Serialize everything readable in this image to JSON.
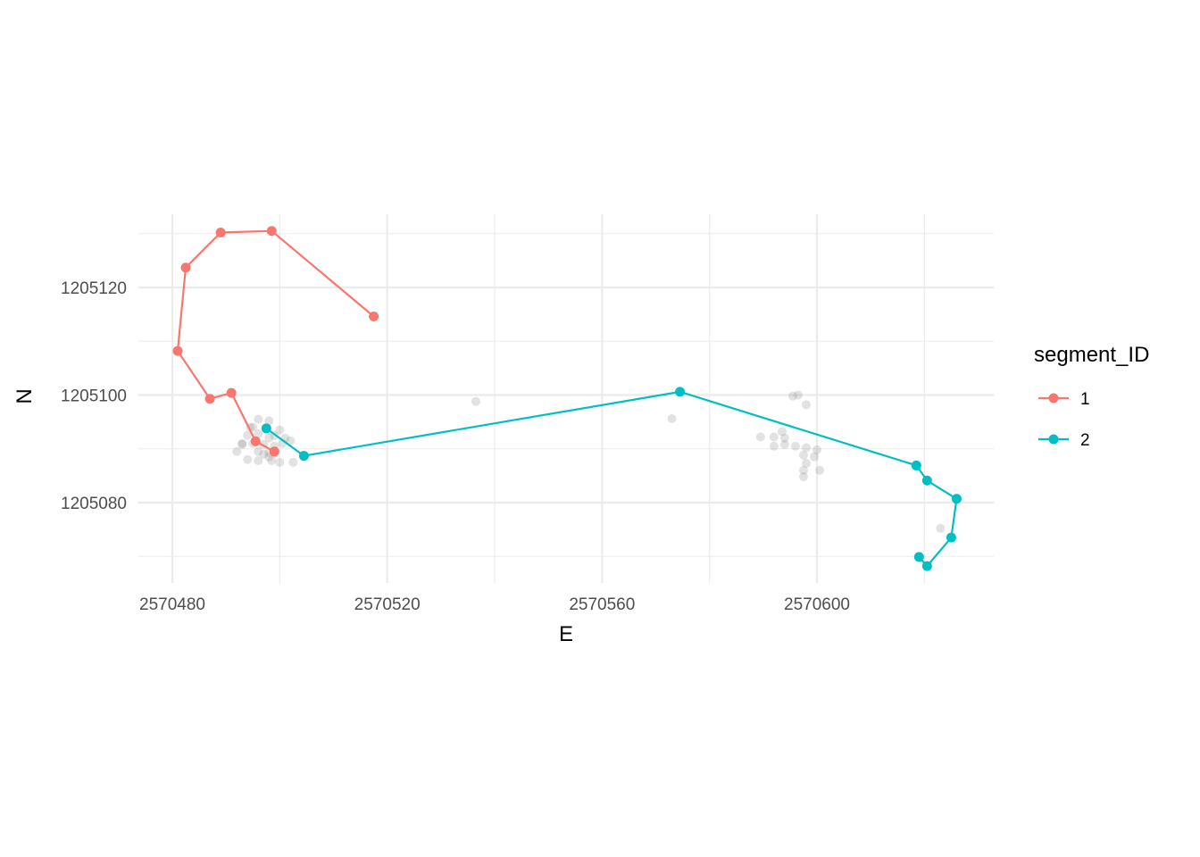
{
  "chart_data": {
    "type": "scatter",
    "title": "",
    "xlabel": "E",
    "ylabel": "N",
    "xlim": [
      2570474,
      2570633
    ],
    "ylim": [
      1205066,
      1205131
    ],
    "x_major_ticks": [
      2570480,
      2570520,
      2570560,
      2570600
    ],
    "x_minor_ticks": [
      2570500,
      2570540,
      2570580,
      2570620
    ],
    "y_major_ticks": [
      1205080,
      1205100,
      1205120
    ],
    "y_minor_ticks": [
      1205070,
      1205090,
      1205110,
      1205130
    ],
    "grid": true,
    "legend": {
      "title": "segment_ID",
      "position": "right"
    },
    "background_points": {
      "color": "#8c8c8c",
      "opacity": 0.25,
      "points": [
        [
          2570494.5,
          1205094
        ],
        [
          2570496,
          1205095.5
        ],
        [
          2570498,
          1205095.2
        ],
        [
          2570495,
          1205094
        ],
        [
          2570494,
          1205092.5
        ],
        [
          2570496,
          1205092.8
        ],
        [
          2570498,
          1205092
        ],
        [
          2570500,
          1205093.5
        ],
        [
          2570499,
          1205092.5
        ],
        [
          2570501,
          1205092
        ],
        [
          2570502,
          1205091.5
        ],
        [
          2570493,
          1205091
        ],
        [
          2570495,
          1205091
        ],
        [
          2570497,
          1205090.8
        ],
        [
          2570499,
          1205090.5
        ],
        [
          2570500.5,
          1205091
        ],
        [
          2570496,
          1205089.5
        ],
        [
          2570498,
          1205089.3
        ],
        [
          2570499,
          1205089.2
        ],
        [
          2570492,
          1205089.5
        ],
        [
          2570494,
          1205088
        ],
        [
          2570496,
          1205087.8
        ],
        [
          2570498.5,
          1205087.8
        ],
        [
          2570500,
          1205087.5
        ],
        [
          2570502.5,
          1205087.5
        ],
        [
          2570497,
          1205089
        ],
        [
          2570498,
          1205088.5
        ],
        [
          2570493,
          1205090.8
        ],
        [
          2570536.5,
          1205098.8
        ],
        [
          2570573,
          1205095.6
        ],
        [
          2570595.5,
          1205099.8
        ],
        [
          2570596.5,
          1205100
        ],
        [
          2570598,
          1205098.2
        ],
        [
          2570593.5,
          1205093.2
        ],
        [
          2570589.5,
          1205092.2
        ],
        [
          2570592,
          1205092.2
        ],
        [
          2570594,
          1205092
        ],
        [
          2570592,
          1205090.5
        ],
        [
          2570594,
          1205090.8
        ],
        [
          2570596,
          1205090.5
        ],
        [
          2570598,
          1205090.2
        ],
        [
          2570600,
          1205089.8
        ],
        [
          2570597.5,
          1205088.8
        ],
        [
          2570599.5,
          1205088.5
        ],
        [
          2570598,
          1205087.3
        ],
        [
          2570600.5,
          1205086
        ],
        [
          2570597.5,
          1205086
        ],
        [
          2570597.5,
          1205084.8
        ],
        [
          2570623,
          1205075.2
        ]
      ]
    },
    "series": [
      {
        "name": "1",
        "color": "#f8766d",
        "points": [
          [
            2570517.5,
            1205114.6
          ],
          [
            2570498.5,
            1205130.5
          ],
          [
            2570489,
            1205130.2
          ],
          [
            2570482.5,
            1205123.7
          ],
          [
            2570481,
            1205108.2
          ],
          [
            2570487,
            1205099.3
          ],
          [
            2570491,
            1205100.4
          ],
          [
            2570495.5,
            1205091.4
          ],
          [
            2570499,
            1205089.5
          ]
        ]
      },
      {
        "name": "2",
        "color": "#00bfc4",
        "points": [
          [
            2570497.5,
            1205093.8
          ],
          [
            2570504.5,
            1205088.7
          ],
          [
            2570574.5,
            1205100.6
          ],
          [
            2570618.5,
            1205086.9
          ],
          [
            2570620.5,
            1205084.1
          ],
          [
            2570626,
            1205080.7
          ],
          [
            2570625,
            1205073.5
          ],
          [
            2570620.5,
            1205068.2
          ],
          [
            2570619,
            1205069.9
          ]
        ]
      }
    ]
  }
}
